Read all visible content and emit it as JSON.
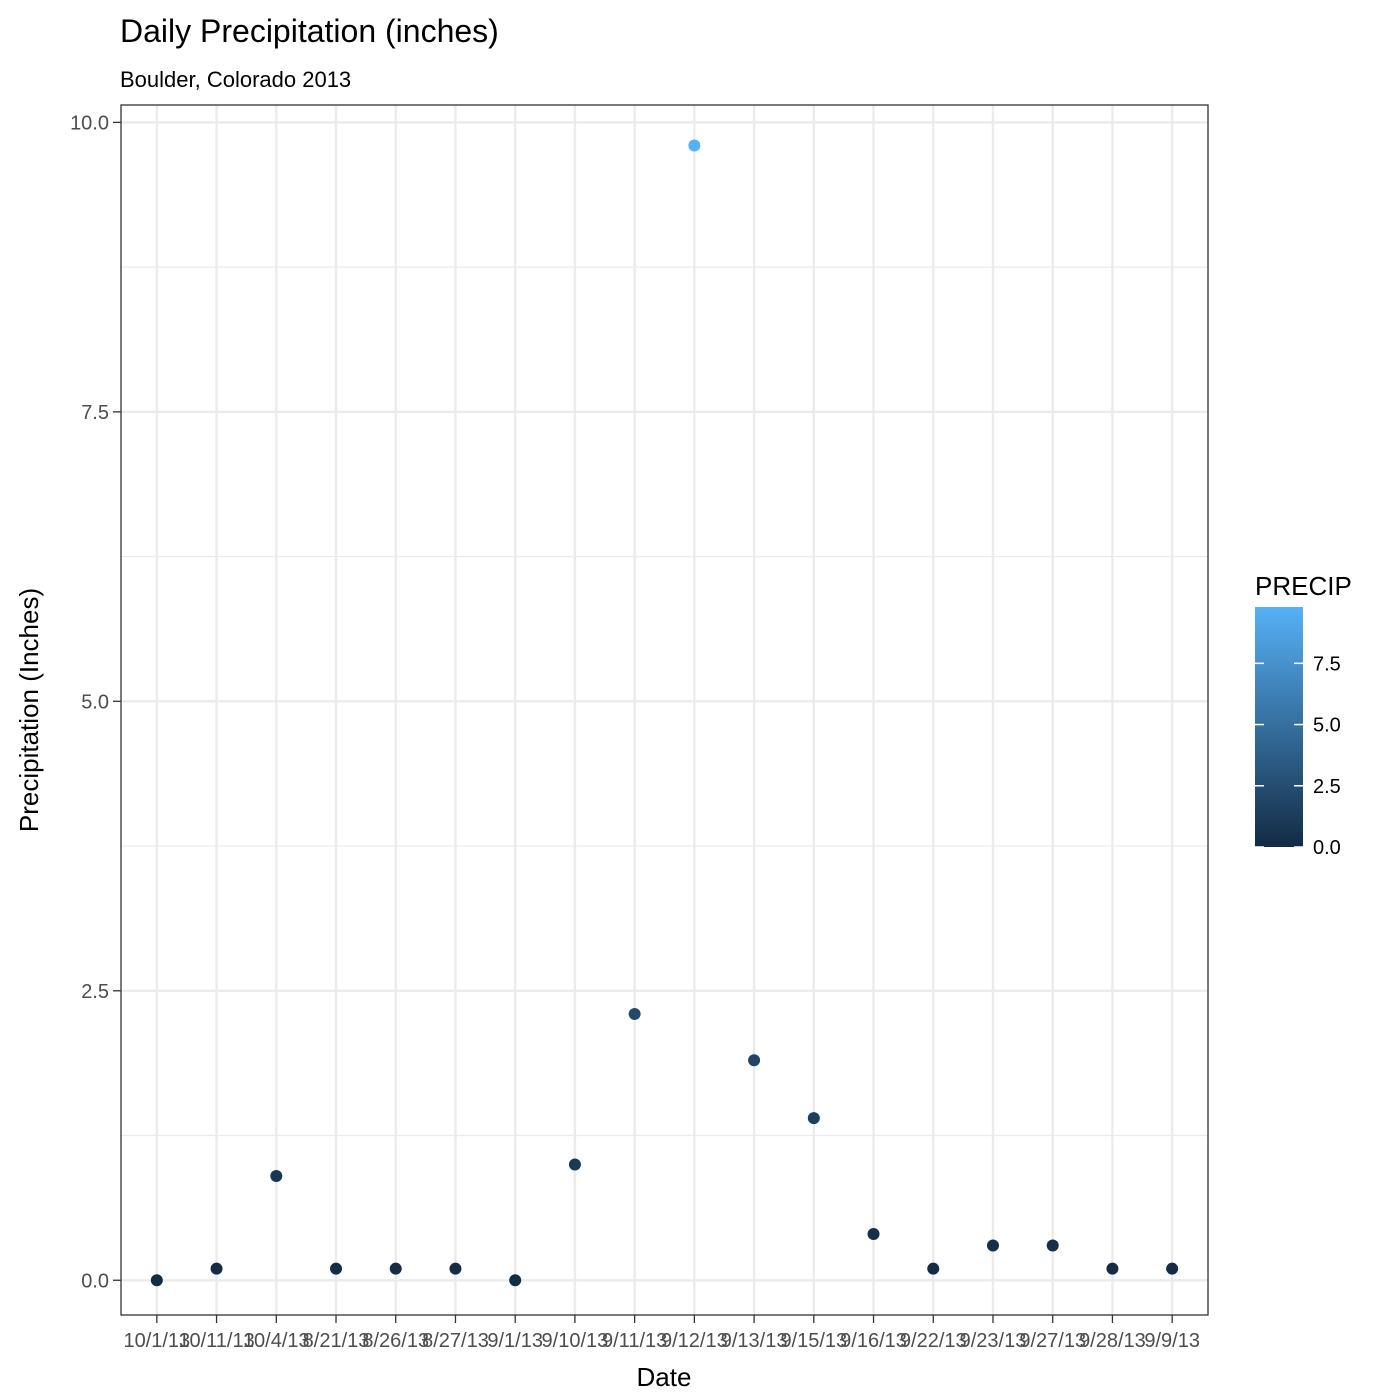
{
  "chart_data": {
    "type": "scatter",
    "title": "Daily Precipitation (inches)",
    "subtitle": "Boulder, Colorado 2013",
    "xlabel": "Date",
    "ylabel": "Precipitation (Inches)",
    "categories": [
      "10/1/13",
      "10/11/13",
      "10/4/13",
      "8/21/13",
      "8/26/13",
      "8/27/13",
      "9/1/13",
      "9/10/13",
      "9/11/13",
      "9/12/13",
      "9/13/13",
      "9/15/13",
      "9/16/13",
      "9/22/13",
      "9/23/13",
      "9/27/13",
      "9/28/13",
      "9/9/13"
    ],
    "values": [
      0.0,
      0.1,
      0.9,
      0.1,
      0.1,
      0.1,
      0.0,
      1.0,
      2.3,
      9.8,
      1.9,
      1.4,
      0.4,
      0.1,
      0.3,
      0.3,
      0.1,
      0.1
    ],
    "ylim": [
      -0.3,
      10.15
    ],
    "yticks": [
      "0.0",
      "2.5",
      "5.0",
      "7.5",
      "10.0"
    ],
    "grid": true,
    "legend": {
      "title": "PRECIP",
      "placement": "right",
      "range": [
        0,
        9.8
      ],
      "ticks": [
        "0.0",
        "2.5",
        "5.0",
        "7.5"
      ],
      "color_low": "#132b43",
      "color_high": "#56b1f7"
    }
  }
}
